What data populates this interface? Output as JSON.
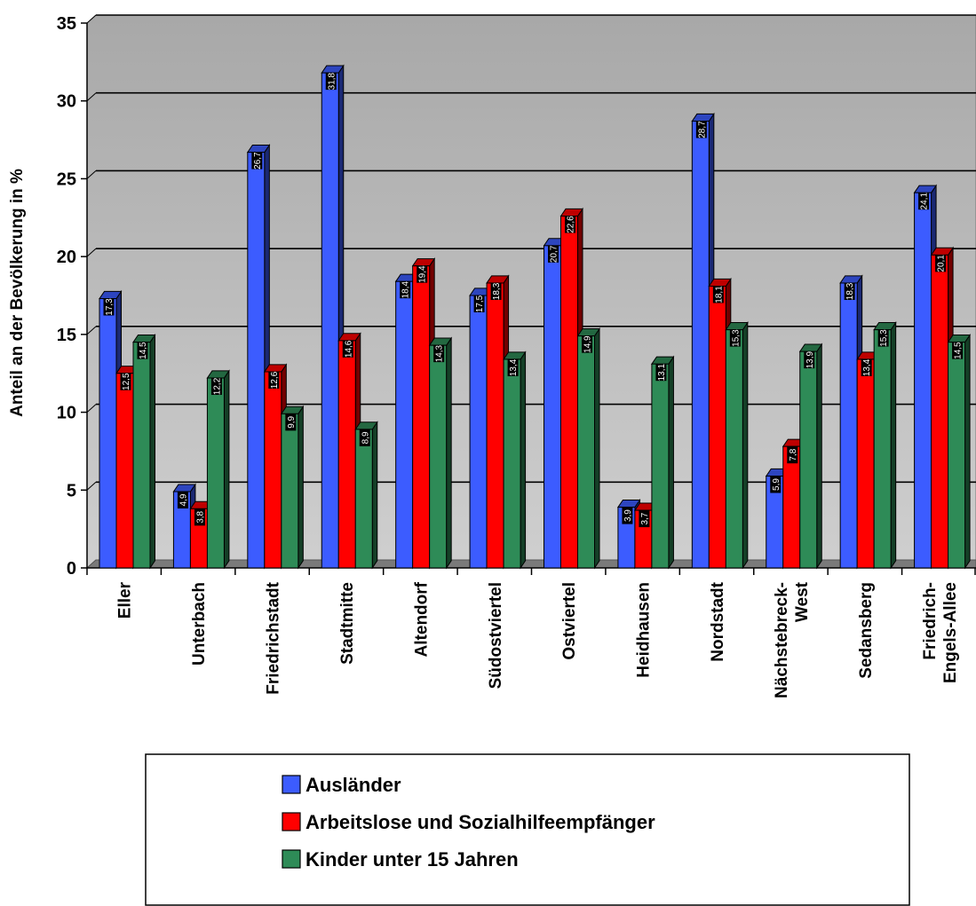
{
  "chart_data": {
    "type": "bar",
    "ylabel": "Anteil an der Bevölkerung in %",
    "ylim": [
      0,
      35
    ],
    "yticks": [
      "0",
      "5",
      "10",
      "15",
      "20",
      "25",
      "30",
      "35"
    ],
    "grid": true,
    "legend_position": "bottom",
    "categories": [
      [
        "Eller"
      ],
      [
        "Unterbach"
      ],
      [
        "Friedrichstadt"
      ],
      [
        "Stadtmitte"
      ],
      [
        "Altendorf"
      ],
      [
        "Südostviertel"
      ],
      [
        "Ostviertel"
      ],
      [
        "Heidhausen"
      ],
      [
        "Nordstadt"
      ],
      [
        "Nächstebreck-",
        "West"
      ],
      [
        "Sedansberg"
      ],
      [
        "Friedrich-",
        "Engels-Allee"
      ]
    ],
    "series": [
      {
        "name": "Ausländer",
        "color": "#3c5cff",
        "values": [
          17.3,
          4.9,
          26.7,
          31.8,
          18.4,
          17.5,
          20.7,
          3.9,
          28.7,
          5.9,
          18.3,
          24.1
        ],
        "labels": [
          "17,3",
          "4,9",
          "26,7",
          "31,8",
          "18,4",
          "17,5",
          "20,7",
          "3,9",
          "28,7",
          "5,9",
          "18,3",
          "24,1"
        ]
      },
      {
        "name": "Arbeitslose und Sozialhilfeempfänger",
        "color": "#ff0000",
        "values": [
          12.5,
          3.8,
          12.6,
          14.6,
          19.4,
          18.3,
          22.6,
          3.7,
          18.1,
          7.8,
          13.4,
          20.1
        ],
        "labels": [
          "12,5",
          "3,8",
          "12,6",
          "14,6",
          "19,4",
          "18,3",
          "22,6",
          "3,7",
          "18,1",
          "7,8",
          "13,4",
          "20,1"
        ]
      },
      {
        "name": "Kinder unter 15 Jahren",
        "color": "#2e8b57",
        "values": [
          14.5,
          12.2,
          9.9,
          8.9,
          14.3,
          13.4,
          14.9,
          13.1,
          15.3,
          13.9,
          15.3,
          14.5
        ],
        "labels": [
          "14,5",
          "12,2",
          "9,9",
          "8,9",
          "14,3",
          "13,4",
          "14,9",
          "13,1",
          "15,3",
          "13,9",
          "15,3",
          "14,5"
        ]
      }
    ]
  }
}
